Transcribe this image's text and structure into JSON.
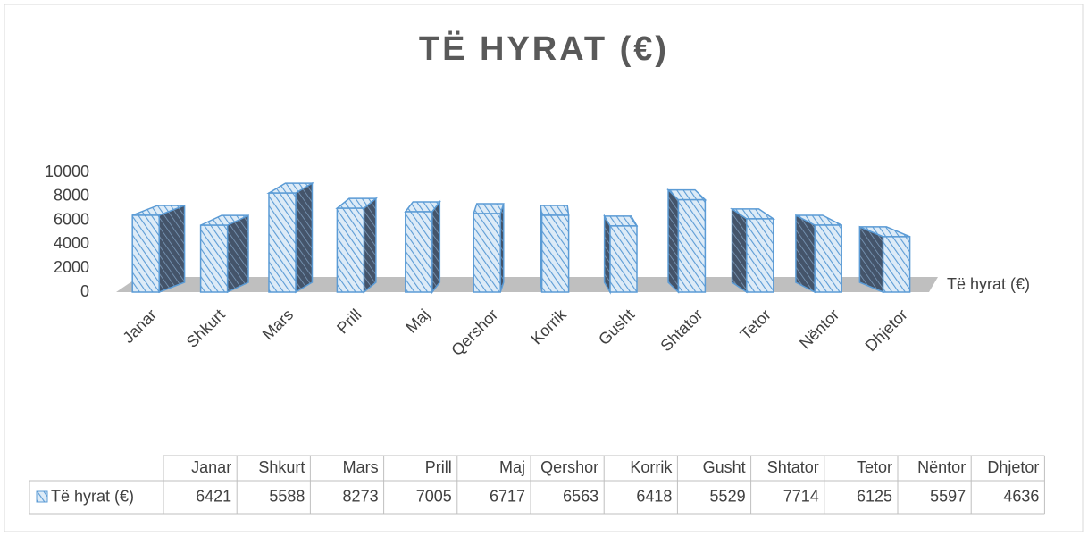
{
  "chart_data": {
    "type": "bar3d",
    "title": "TË HYRAT (€)",
    "categories": [
      "Janar",
      "Shkurt",
      "Mars",
      "Prill",
      "Maj",
      "Qershor",
      "Korrik",
      "Gusht",
      "Shtator",
      "Tetor",
      "Nëntor",
      "Dhjetor"
    ],
    "series": [
      {
        "name": "Të hyrat (€)",
        "color": "#5b9bd5",
        "values": [
          6421,
          5588,
          8273,
          7005,
          6717,
          6563,
          6418,
          5529,
          7714,
          6125,
          5597,
          4636
        ]
      }
    ],
    "ylim": [
      0,
      10000
    ],
    "yticks": [
      0,
      2000,
      4000,
      6000,
      8000,
      10000
    ],
    "data_table": true
  }
}
